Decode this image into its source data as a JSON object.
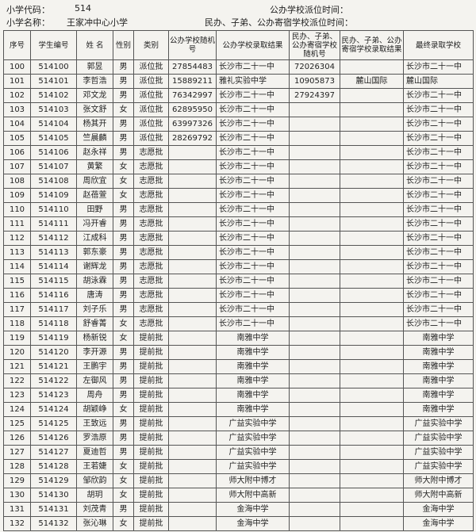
{
  "header": {
    "code_label": "小学代码：",
    "code": "514",
    "name_label": "小学名称：",
    "name": "王家冲中心小学",
    "time1_label": "公办学校派位时间：",
    "time2_label": "民办、子弟、公办寄宿学校派位时间："
  },
  "table": {
    "columns": [
      "序号",
      "学生编号",
      "姓 名",
      "性别",
      "类别",
      "公办学校随机号",
      "公办学校录取结果",
      "民办、子弟、公办寄宿学校随机号",
      "民办、子弟、公办寄宿学校录取结果",
      "最终录取学校"
    ],
    "rows": [
      {
        "no": 100,
        "id": 514100,
        "name": "郭昱",
        "sex": "男",
        "type": "派位批",
        "rand": 27854483,
        "result": "长沙市二十一中",
        "rand2": 72026304,
        "final": "长沙市二十一中"
      },
      {
        "no": 101,
        "id": 514101,
        "name": "李哲浩",
        "sex": "男",
        "type": "派位批",
        "rand": 15889211,
        "result": "雅礼实验中学",
        "rand2": 10905873,
        "result2": "麓山国际",
        "final": "麓山国际"
      },
      {
        "no": 102,
        "id": 514102,
        "name": "邓文龙",
        "sex": "男",
        "type": "派位批",
        "rand": 76342997,
        "result": "长沙市二十一中",
        "rand2": 27924397,
        "final": "长沙市二十一中"
      },
      {
        "no": 103,
        "id": 514103,
        "name": "张文舒",
        "sex": "女",
        "type": "派位批",
        "rand": 62895950,
        "result": "长沙市二十一中",
        "final": "长沙市二十一中"
      },
      {
        "no": 104,
        "id": 514104,
        "name": "杨其开",
        "sex": "男",
        "type": "派位批",
        "rand": 63997326,
        "result": "长沙市二十一中",
        "final": "长沙市二十一中"
      },
      {
        "no": 105,
        "id": 514105,
        "name": "竺晨麟",
        "sex": "男",
        "type": "派位批",
        "rand": 28269792,
        "result": "长沙市二十一中",
        "final": "长沙市二十一中"
      },
      {
        "no": 106,
        "id": 514106,
        "name": "赵永祥",
        "sex": "男",
        "type": "志愿批",
        "result": "长沙市二十一中",
        "final": "长沙市二十一中"
      },
      {
        "no": 107,
        "id": 514107,
        "name": "黄繁",
        "sex": "女",
        "type": "志愿批",
        "result": "长沙市二十一中",
        "final": "长沙市二十一中"
      },
      {
        "no": 108,
        "id": 514108,
        "name": "周欣宜",
        "sex": "女",
        "type": "志愿批",
        "result": "长沙市二十一中",
        "final": "长沙市二十一中"
      },
      {
        "no": 109,
        "id": 514109,
        "name": "赵蓓萱",
        "sex": "女",
        "type": "志愿批",
        "result": "长沙市二十一中",
        "final": "长沙市二十一中"
      },
      {
        "no": 110,
        "id": 514110,
        "name": "田野",
        "sex": "男",
        "type": "志愿批",
        "result": "长沙市二十一中",
        "final": "长沙市二十一中"
      },
      {
        "no": 111,
        "id": 514111,
        "name": "冯开睿",
        "sex": "男",
        "type": "志愿批",
        "result": "长沙市二十一中",
        "final": "长沙市二十一中"
      },
      {
        "no": 112,
        "id": 514112,
        "name": "江成科",
        "sex": "男",
        "type": "志愿批",
        "result": "长沙市二十一中",
        "final": "长沙市二十一中"
      },
      {
        "no": 113,
        "id": 514113,
        "name": "郭东豪",
        "sex": "男",
        "type": "志愿批",
        "result": "长沙市二十一中",
        "final": "长沙市二十一中"
      },
      {
        "no": 114,
        "id": 514114,
        "name": "谢辉龙",
        "sex": "男",
        "type": "志愿批",
        "result": "长沙市二十一中",
        "final": "长沙市二十一中"
      },
      {
        "no": 115,
        "id": 514115,
        "name": "胡泳霖",
        "sex": "男",
        "type": "志愿批",
        "result": "长沙市二十一中",
        "final": "长沙市二十一中"
      },
      {
        "no": 116,
        "id": 514116,
        "name": "唐涛",
        "sex": "男",
        "type": "志愿批",
        "result": "长沙市二十一中",
        "final": "长沙市二十一中"
      },
      {
        "no": 117,
        "id": 514117,
        "name": "刘子乐",
        "sex": "男",
        "type": "志愿批",
        "result": "长沙市二十一中",
        "final": "长沙市二十一中"
      },
      {
        "no": 118,
        "id": 514118,
        "name": "舒睿菁",
        "sex": "女",
        "type": "志愿批",
        "result": "长沙市二十一中",
        "final": "长沙市二十一中"
      },
      {
        "no": 119,
        "id": 514119,
        "name": "杨新锐",
        "sex": "女",
        "type": "提前批",
        "result": "南雅中学",
        "final": "南雅中学"
      },
      {
        "no": 120,
        "id": 514120,
        "name": "李开源",
        "sex": "男",
        "type": "提前批",
        "result": "南雅中学",
        "final": "南雅中学"
      },
      {
        "no": 121,
        "id": 514121,
        "name": "王鹏宇",
        "sex": "男",
        "type": "提前批",
        "result": "南雅中学",
        "final": "南雅中学"
      },
      {
        "no": 122,
        "id": 514122,
        "name": "左御风",
        "sex": "男",
        "type": "提前批",
        "result": "南雅中学",
        "final": "南雅中学"
      },
      {
        "no": 123,
        "id": 514123,
        "name": "周舟",
        "sex": "男",
        "type": "提前批",
        "result": "南雅中学",
        "final": "南雅中学"
      },
      {
        "no": 124,
        "id": 514124,
        "name": "胡颖峥",
        "sex": "女",
        "type": "提前批",
        "result": "南雅中学",
        "final": "南雅中学"
      },
      {
        "no": 125,
        "id": 514125,
        "name": "王致远",
        "sex": "男",
        "type": "提前批",
        "result": "广益实验中学",
        "final": "广益实验中学"
      },
      {
        "no": 126,
        "id": 514126,
        "name": "罗浩原",
        "sex": "男",
        "type": "提前批",
        "result": "广益实验中学",
        "final": "广益实验中学"
      },
      {
        "no": 127,
        "id": 514127,
        "name": "夏迪哲",
        "sex": "男",
        "type": "提前批",
        "result": "广益实验中学",
        "final": "广益实验中学"
      },
      {
        "no": 128,
        "id": 514128,
        "name": "王若婕",
        "sex": "女",
        "type": "提前批",
        "result": "广益实验中学",
        "final": "广益实验中学"
      },
      {
        "no": 129,
        "id": 514129,
        "name": "邹欣韵",
        "sex": "女",
        "type": "提前批",
        "result": "师大附中博才",
        "final": "师大附中博才"
      },
      {
        "no": 130,
        "id": 514130,
        "name": "胡玥",
        "sex": "女",
        "type": "提前批",
        "result": "师大附中高新",
        "final": "师大附中高新"
      },
      {
        "no": 131,
        "id": 514131,
        "name": "刘茂青",
        "sex": "男",
        "type": "提前批",
        "result": "金海中学",
        "final": "金海中学"
      },
      {
        "no": 132,
        "id": 514132,
        "name": "张沁琳",
        "sex": "女",
        "type": "提前批",
        "result": "金海中学",
        "final": "金海中学"
      }
    ]
  }
}
